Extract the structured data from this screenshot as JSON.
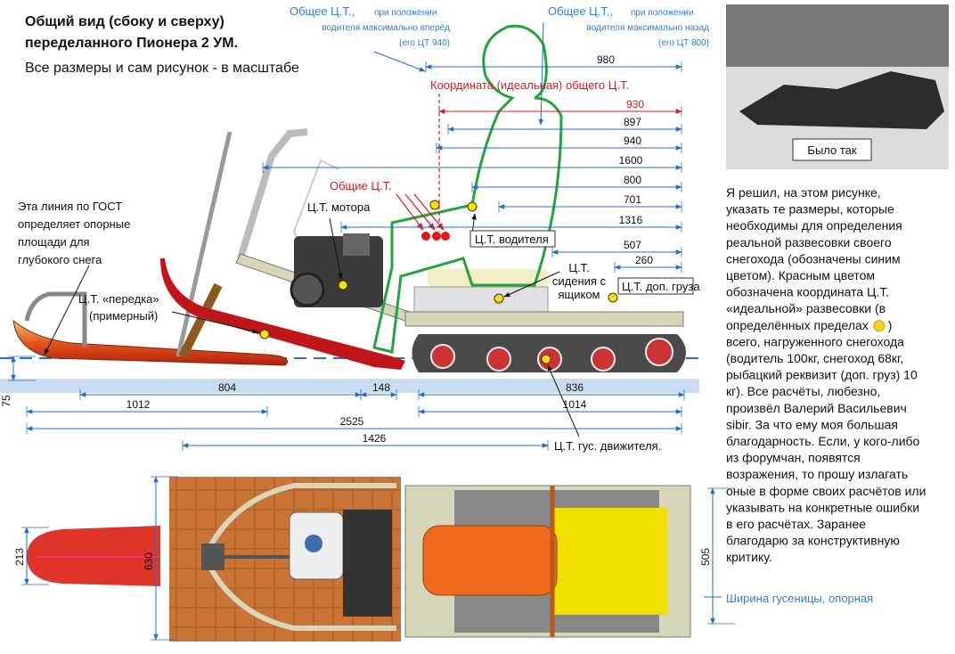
{
  "header": {
    "title": [
      "Общий вид (сбоку и сверху)",
      "переделанного Пионера 2 УМ."
    ],
    "subtitle": "Все размеры и сам рисунок - в масштабе"
  },
  "cg_forward": {
    "label": "Общее Ц.Т.,",
    "note": [
      "при положении",
      "водителя максимально вперёд",
      "(его ЦТ 940)"
    ]
  },
  "cg_back": {
    "label": "Общее Ц.Т.,",
    "note": [
      "при положении",
      "водителя максимально назад",
      "(его ЦТ 800)"
    ]
  },
  "ideal_cg": "Координата (идеальная) общего Ц.Т.",
  "labels": {
    "total_cg": "Общие Ц.Т.",
    "engine_cg": "Ц.Т. мотора",
    "driver_cg": "Ц.Т. водителя",
    "seat_cg": [
      "Ц.Т.",
      "сидения с",
      "ящиком"
    ],
    "cargo_cg": "Ц.Т. доп. груза",
    "gost": [
      "Эта линия по ГОСТ",
      "определяет опорные",
      "площади для",
      "глубокого снега"
    ],
    "front_cg": [
      "Ц.Т. «передка»",
      "(примерный)"
    ],
    "track_cg": "Ц.Т. гус. движителя."
  },
  "dimensions": [
    980,
    930,
    897,
    940,
    1600,
    800,
    701,
    1316,
    507,
    260,
    804,
    148,
    836,
    1014,
    1012,
    2525,
    1426,
    75,
    213,
    630,
    505
  ],
  "photo": {
    "caption": "Было так"
  },
  "description": {
    "lines": [
      "Я решил, на этом рисунке,",
      "указать те размеры, которые",
      "необходимы для определения",
      "реальной развесовки своего",
      "снегохода (обозначены синим",
      "цветом). Красным цветом",
      "обозначена координата Ц.Т.",
      "«идеальной» развесовки (в",
      "определённых пределах",
      "всего, нагруженного снегохода",
      "(водитель 100кг, снегоход 68кг,",
      "рыбацкий реквизит (доп. груз) 10",
      "кг).  Все расчёты, любезно,",
      "произвёл Валерий Васильевич",
      "sibir. За что ему моя большая",
      "благодарность. Если, у кого-либо",
      "из форумчан, появятся",
      "возражения, то прошу излагать",
      "оные в форме своих расчётов или",
      "указывать на конкретные ошибки",
      "в его расчётах. Заранее",
      "благодарю за конструктивную",
      "критику."
    ],
    "after_smiley": ")"
  },
  "track_width_note": "Ширина гусеницы, опорная"
}
